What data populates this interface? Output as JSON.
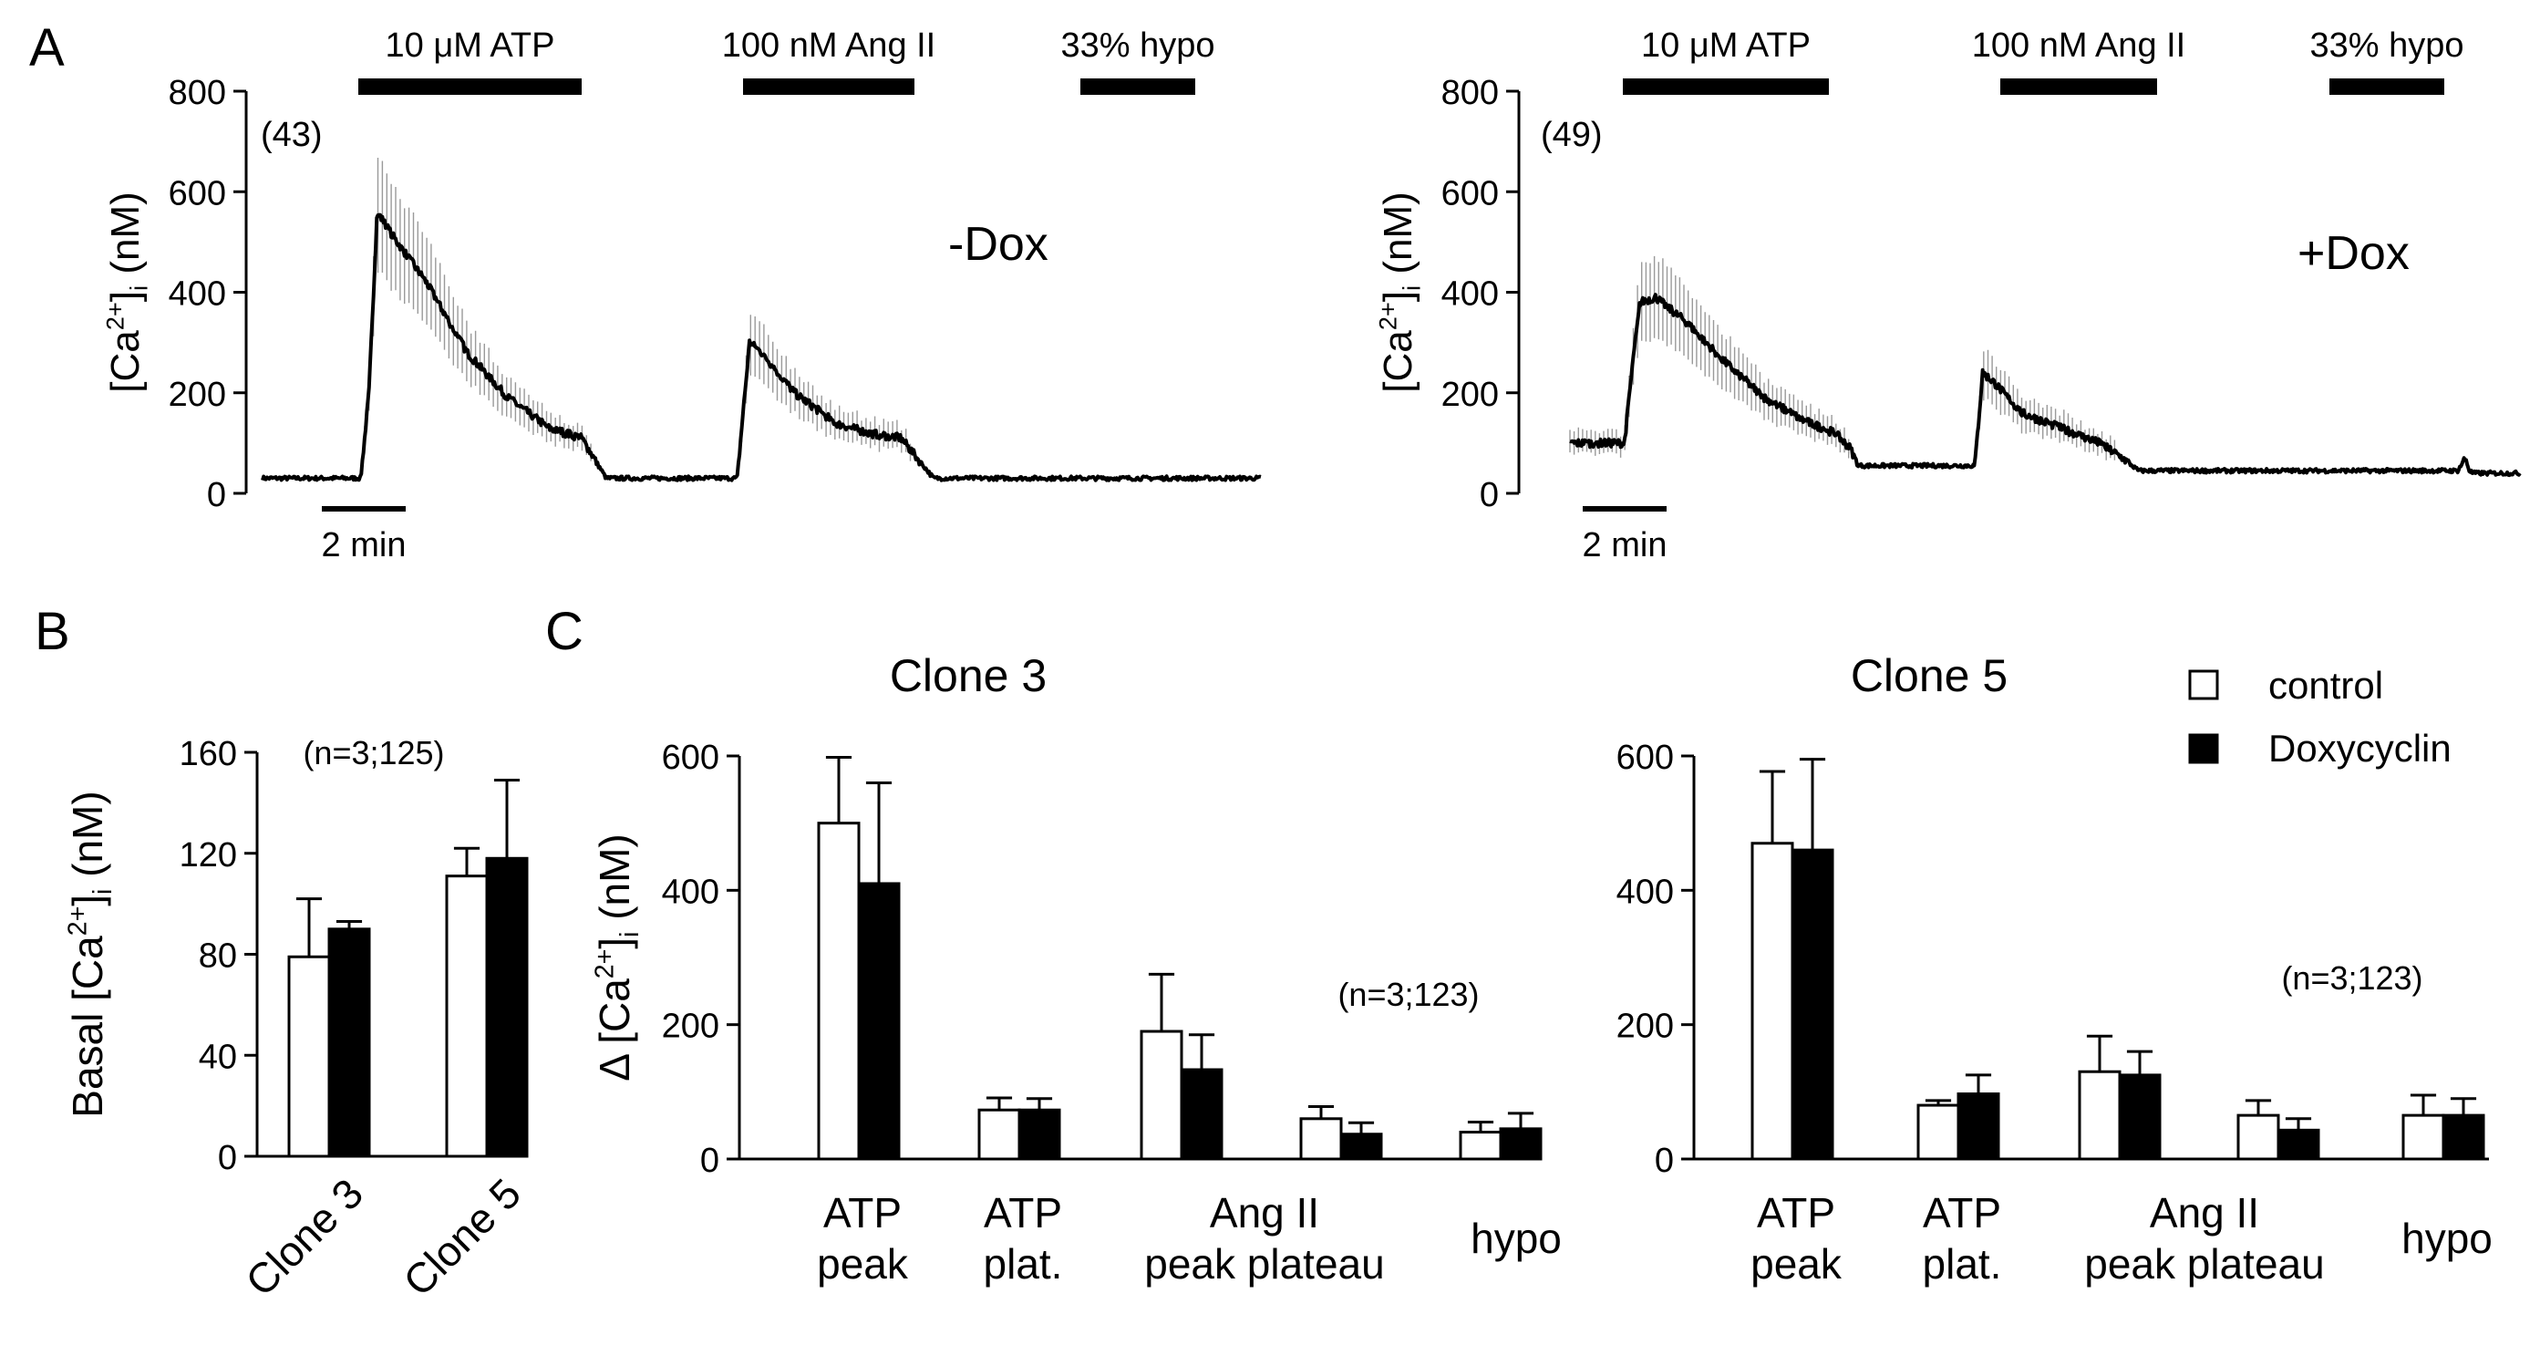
{
  "figure": {
    "panel_labels": {
      "a": "A",
      "b": "B",
      "c": "C"
    }
  },
  "traces": {
    "y_label_prefix": "[Ca",
    "y_label_sup": "2+",
    "y_label_close": "]",
    "y_label_sub": "i",
    "y_label_suffix": " (nM)",
    "ylim": [
      0,
      800
    ],
    "yticks": [
      0,
      200,
      400,
      600,
      800
    ],
    "time_range_min": [
      0,
      12.2
    ],
    "scale_bar_label": "2 min",
    "stimuli": [
      {
        "label": "10 μM ATP",
        "start_min": 1.2,
        "end_min": 3.9
      },
      {
        "label": "100 nM Ang II",
        "start_min": 5.9,
        "end_min": 8.0
      },
      {
        "label": "33% hypo",
        "start_min": 10.0,
        "end_min": 11.4
      }
    ],
    "left": {
      "condition": "-Dox",
      "n_label": "(43)",
      "waypoints_min_nM": [
        [
          0,
          30
        ],
        [
          1.2,
          30
        ],
        [
          1.3,
          200
        ],
        [
          1.4,
          560
        ],
        [
          1.6,
          510
        ],
        [
          2.0,
          420
        ],
        [
          2.5,
          280
        ],
        [
          3.0,
          190
        ],
        [
          3.5,
          130
        ],
        [
          3.9,
          110
        ],
        [
          4.2,
          30
        ],
        [
          5.8,
          30
        ],
        [
          5.95,
          300
        ],
        [
          6.1,
          280
        ],
        [
          6.5,
          200
        ],
        [
          7.0,
          140
        ],
        [
          7.4,
          120
        ],
        [
          7.8,
          110
        ],
        [
          8.2,
          30
        ],
        [
          12.2,
          30
        ]
      ]
    },
    "right": {
      "condition": "+Dox",
      "n_label": "(49)",
      "waypoints_min_nM": [
        [
          0,
          100
        ],
        [
          0.7,
          100
        ],
        [
          0.8,
          250
        ],
        [
          0.9,
          380
        ],
        [
          1.1,
          390
        ],
        [
          1.5,
          340
        ],
        [
          2.0,
          260
        ],
        [
          2.5,
          190
        ],
        [
          3.0,
          145
        ],
        [
          3.4,
          120
        ],
        [
          3.6,
          90
        ],
        [
          3.7,
          55
        ],
        [
          5.2,
          55
        ],
        [
          5.3,
          240
        ],
        [
          5.45,
          220
        ],
        [
          5.8,
          160
        ],
        [
          6.3,
          130
        ],
        [
          6.8,
          100
        ],
        [
          7.1,
          70
        ],
        [
          7.3,
          45
        ],
        [
          11.4,
          45
        ],
        [
          11.5,
          70
        ],
        [
          11.55,
          45
        ],
        [
          11.6,
          40
        ]
      ]
    }
  },
  "chart_data": [
    {
      "type": "bar",
      "title": "",
      "panel": "B",
      "ylabel": "Basal [Ca2+]i (nM)",
      "ylabel_prefix": "Basal [Ca",
      "ylim": [
        0,
        160
      ],
      "yticks": [
        0,
        40,
        80,
        120,
        160
      ],
      "n_label": "(n=3;125)",
      "categories": [
        "Clone 3",
        "Clone 5"
      ],
      "series": [
        {
          "name": "control",
          "values": [
            79,
            111
          ],
          "errors": [
            23,
            11
          ]
        },
        {
          "name": "Doxycyclin",
          "values": [
            90,
            118
          ],
          "errors": [
            3,
            31
          ]
        }
      ]
    },
    {
      "type": "bar",
      "title": "Clone 3",
      "panel": "C",
      "ylabel": "Δ [Ca2+]i (nM)",
      "ylabel_prefix": "Δ [Ca",
      "ylim": [
        0,
        600
      ],
      "yticks": [
        0,
        200,
        400,
        600
      ],
      "n_label": "(n=3;123)",
      "categories": [
        "ATP peak",
        "ATP plat.",
        "Ang II peak",
        "Ang II plateau",
        "hypo"
      ],
      "category_label_lines": [
        [
          "ATP",
          "peak"
        ],
        [
          "ATP",
          "plat."
        ],
        [
          "Ang II",
          "peak plateau"
        ],
        [
          "hypo"
        ]
      ],
      "series": [
        {
          "name": "control",
          "values": [
            500,
            73,
            190,
            60,
            40
          ],
          "errors": [
            98,
            18,
            85,
            18,
            15
          ]
        },
        {
          "name": "Doxycyclin",
          "values": [
            410,
            73,
            133,
            37,
            45
          ],
          "errors": [
            150,
            17,
            52,
            17,
            23
          ]
        }
      ]
    },
    {
      "type": "bar",
      "title": "Clone 5",
      "panel": "C",
      "ylabel": "",
      "ylim": [
        0,
        600
      ],
      "yticks": [
        0,
        200,
        400,
        600
      ],
      "n_label": "(n=3;123)",
      "categories": [
        "ATP peak",
        "ATP plat.",
        "Ang II peak",
        "Ang II plateau",
        "hypo"
      ],
      "category_label_lines": [
        [
          "ATP",
          "peak"
        ],
        [
          "ATP",
          "plat."
        ],
        [
          "Ang II",
          "peak plateau"
        ],
        [
          "hypo"
        ]
      ],
      "series": [
        {
          "name": "control",
          "values": [
            470,
            80,
            130,
            65,
            65
          ],
          "errors": [
            107,
            7,
            53,
            22,
            30
          ]
        },
        {
          "name": "Doxycyclin",
          "values": [
            460,
            97,
            125,
            43,
            65
          ],
          "errors": [
            135,
            28,
            35,
            17,
            25
          ]
        }
      ]
    }
  ],
  "legend": {
    "entries": [
      {
        "label": "control",
        "fill": "#ffffff"
      },
      {
        "label": "Doxycyclin",
        "fill": "#000000"
      }
    ]
  },
  "colors": {
    "ink": "#000000",
    "paper": "#ffffff",
    "error_shade": "#9a9a9a"
  }
}
